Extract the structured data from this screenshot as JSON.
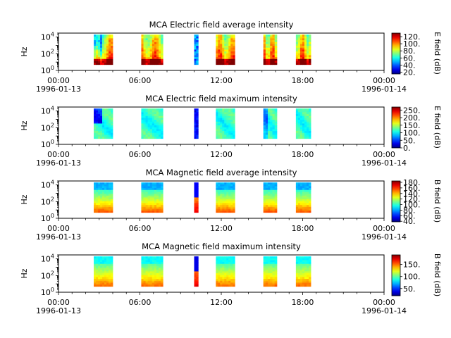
{
  "chart_data": [
    {
      "type": "heatmap",
      "title": "MCA  Electric field average intensity",
      "ylabel": "Hz",
      "yscale": "log",
      "ylim": [
        1,
        30000
      ],
      "y_ticks": [
        {
          "base": "10",
          "exp": "0"
        },
        {
          "base": "10",
          "exp": "2"
        },
        {
          "base": "10",
          "exp": "4"
        }
      ],
      "x_ticks": [
        "00:00",
        "06:00",
        "12:00",
        "18:00",
        "00:00"
      ],
      "x_dates": [
        "1996-01-13",
        "1996-01-14"
      ],
      "xlim": [
        "1996-01-13 00:00",
        "1996-01-14 00:00"
      ],
      "colorbar_label": "E field (dB)",
      "colorbar_range": [
        15,
        130
      ],
      "colorbar_ticks": [
        "20.",
        "40.",
        "60.",
        "80.",
        "100.",
        "120."
      ],
      "data_segments_hours": [
        [
          2.6,
          4.0
        ],
        [
          6.1,
          7.7
        ],
        [
          10.0,
          10.3
        ],
        [
          11.6,
          13.0
        ],
        [
          15.1,
          16.1
        ],
        [
          17.5,
          18.6
        ]
      ]
    },
    {
      "type": "heatmap",
      "title": "MCA  Electric field maximum intensity",
      "ylabel": "Hz",
      "yscale": "log",
      "ylim": [
        1,
        30000
      ],
      "y_ticks": [
        {
          "base": "10",
          "exp": "0"
        },
        {
          "base": "10",
          "exp": "2"
        },
        {
          "base": "10",
          "exp": "4"
        }
      ],
      "x_ticks": [
        "00:00",
        "06:00",
        "12:00",
        "18:00",
        "00:00"
      ],
      "x_dates": [
        "1996-01-13",
        "1996-01-14"
      ],
      "xlim": [
        "1996-01-13 00:00",
        "1996-01-14 00:00"
      ],
      "colorbar_label": "E field (dB)",
      "colorbar_range": [
        0,
        270
      ],
      "colorbar_ticks": [
        "0.",
        "50.",
        "100.",
        "150.",
        "200.",
        "250."
      ],
      "data_segments_hours": [
        [
          2.6,
          4.0
        ],
        [
          6.1,
          7.7
        ],
        [
          10.0,
          10.3
        ],
        [
          11.6,
          13.0
        ],
        [
          15.1,
          16.1
        ],
        [
          17.5,
          18.6
        ]
      ]
    },
    {
      "type": "heatmap",
      "title": "MCA  Magnetic field average intensity",
      "ylabel": "Hz",
      "yscale": "log",
      "ylim": [
        1,
        30000
      ],
      "y_ticks": [
        {
          "base": "10",
          "exp": "0"
        },
        {
          "base": "10",
          "exp": "2"
        },
        {
          "base": "10",
          "exp": "4"
        }
      ],
      "x_ticks": [
        "00:00",
        "06:00",
        "12:00",
        "18:00",
        "00:00"
      ],
      "x_dates": [
        "1996-01-13",
        "1996-01-14"
      ],
      "xlim": [
        "1996-01-13 00:00",
        "1996-01-14 00:00"
      ],
      "colorbar_label": "B field (dB)",
      "colorbar_range": [
        38,
        185
      ],
      "colorbar_ticks": [
        "40.",
        "60.",
        "80.",
        "100.",
        "120.",
        "140.",
        "160.",
        "180."
      ],
      "data_segments_hours": [
        [
          2.6,
          4.0
        ],
        [
          6.1,
          7.7
        ],
        [
          10.0,
          10.3
        ],
        [
          11.6,
          13.0
        ],
        [
          15.1,
          16.1
        ],
        [
          17.5,
          18.6
        ]
      ]
    },
    {
      "type": "heatmap",
      "title": "MCA  Magnetic field maximum intensity",
      "ylabel": "Hz",
      "yscale": "log",
      "ylim": [
        1,
        30000
      ],
      "y_ticks": [
        {
          "base": "10",
          "exp": "0"
        },
        {
          "base": "10",
          "exp": "2"
        },
        {
          "base": "10",
          "exp": "4"
        }
      ],
      "x_ticks": [
        "00:00",
        "06:00",
        "12:00",
        "18:00",
        "00:00"
      ],
      "x_dates": [
        "1996-01-13",
        "1996-01-14"
      ],
      "xlim": [
        "1996-01-13 00:00",
        "1996-01-14 00:00"
      ],
      "colorbar_label": "B field (dB)",
      "colorbar_range": [
        20,
        190
      ],
      "colorbar_ticks": [
        "50.",
        "100.",
        "150."
      ],
      "data_segments_hours": [
        [
          2.6,
          4.0
        ],
        [
          6.1,
          7.7
        ],
        [
          10.0,
          10.3
        ],
        [
          11.6,
          13.0
        ],
        [
          15.1,
          16.1
        ],
        [
          17.5,
          18.6
        ]
      ]
    }
  ]
}
